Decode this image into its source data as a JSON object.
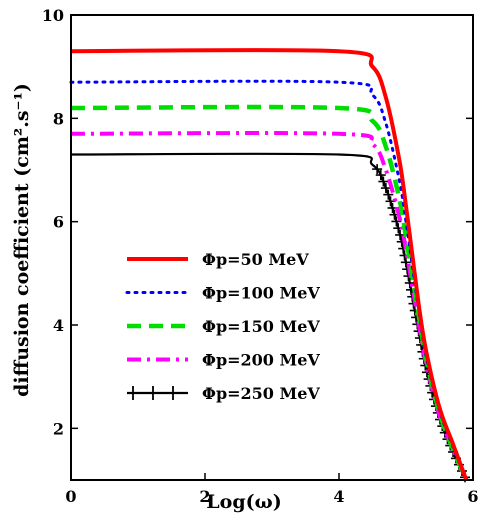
{
  "chart_data": {
    "type": "line",
    "xlabel": "Log(ω)",
    "ylabel": "diffusion coefficient (cm².s⁻¹)",
    "xlim": [
      0,
      6
    ],
    "ylim": [
      1,
      10
    ],
    "xticks": [
      "0",
      "2",
      "4",
      "6"
    ],
    "yticks": [
      "2",
      "4",
      "6",
      "8",
      "10"
    ],
    "grid": false,
    "legend_position": "center-left",
    "series": [
      {
        "name": "Φp=50 MeV",
        "plateau": 9.3,
        "color": "#ff0000",
        "style": "solid",
        "x": [
          0,
          4.0,
          4.5,
          4.7,
          4.9,
          5.0,
          5.1,
          5.2,
          5.3,
          5.5,
          5.7,
          5.9
        ],
        "y": [
          9.3,
          9.3,
          9.0,
          8.4,
          7.2,
          6.3,
          5.3,
          4.3,
          3.5,
          2.4,
          1.7,
          1.0
        ]
      },
      {
        "name": "Φp=100 MeV",
        "plateau": 8.7,
        "color": "#0000ff",
        "style": "dotted",
        "x": [
          0,
          4.0,
          4.5,
          4.7,
          4.9,
          5.0,
          5.1,
          5.2,
          5.3,
          5.5,
          5.7,
          5.9
        ],
        "y": [
          8.7,
          8.7,
          8.45,
          7.9,
          6.8,
          6.0,
          5.1,
          4.2,
          3.4,
          2.35,
          1.65,
          1.0
        ]
      },
      {
        "name": "Φp=150 MeV",
        "plateau": 8.2,
        "color": "#00dd00",
        "style": "dashed",
        "x": [
          0,
          4.0,
          4.5,
          4.7,
          4.9,
          5.0,
          5.1,
          5.2,
          5.3,
          5.5,
          5.7,
          5.9
        ],
        "y": [
          8.2,
          8.2,
          7.95,
          7.45,
          6.45,
          5.7,
          4.9,
          4.1,
          3.35,
          2.3,
          1.6,
          1.0
        ]
      },
      {
        "name": "Φp=200 MeV",
        "plateau": 7.7,
        "color": "#ff00ff",
        "style": "dashdot",
        "x": [
          0,
          4.0,
          4.5,
          4.7,
          4.9,
          5.0,
          5.1,
          5.2,
          5.3,
          5.5,
          5.7,
          5.9
        ],
        "y": [
          7.7,
          7.7,
          7.5,
          7.0,
          6.1,
          5.45,
          4.7,
          3.95,
          3.25,
          2.25,
          1.6,
          1.0
        ]
      },
      {
        "name": "Φp=250 MeV",
        "plateau": 7.3,
        "color": "#000000",
        "style": "cross",
        "x": [
          0,
          4.0,
          4.5,
          4.7,
          4.9,
          5.0,
          5.1,
          5.2,
          5.3,
          5.5,
          5.7,
          5.9
        ],
        "y": [
          7.3,
          7.3,
          7.1,
          6.65,
          5.8,
          5.2,
          4.5,
          3.8,
          3.15,
          2.2,
          1.55,
          1.0
        ]
      }
    ]
  }
}
